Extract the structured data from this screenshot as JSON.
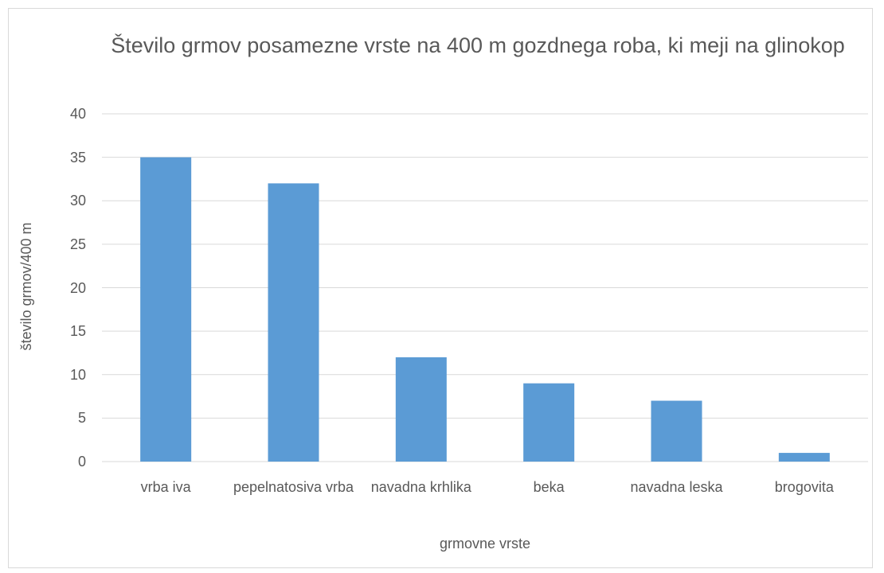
{
  "chart_data": {
    "type": "bar",
    "title": "Število grmov posamezne vrste na 400 m gozdnega roba, ki meji na glinokop",
    "x_label": "grmovne vrste",
    "y_label": "število grmov/400 m",
    "categories": [
      "vrba iva",
      "pepelnatosiva vrba",
      "navadna krhlika",
      "beka",
      "navadna leska",
      "brogovita"
    ],
    "values": [
      35,
      32,
      12,
      9,
      7,
      1
    ],
    "color": "#5b9bd5",
    "ylim": [
      0,
      40
    ],
    "yticks": [
      0,
      5,
      10,
      15,
      20,
      25,
      30,
      35,
      40
    ],
    "grid": true
  }
}
